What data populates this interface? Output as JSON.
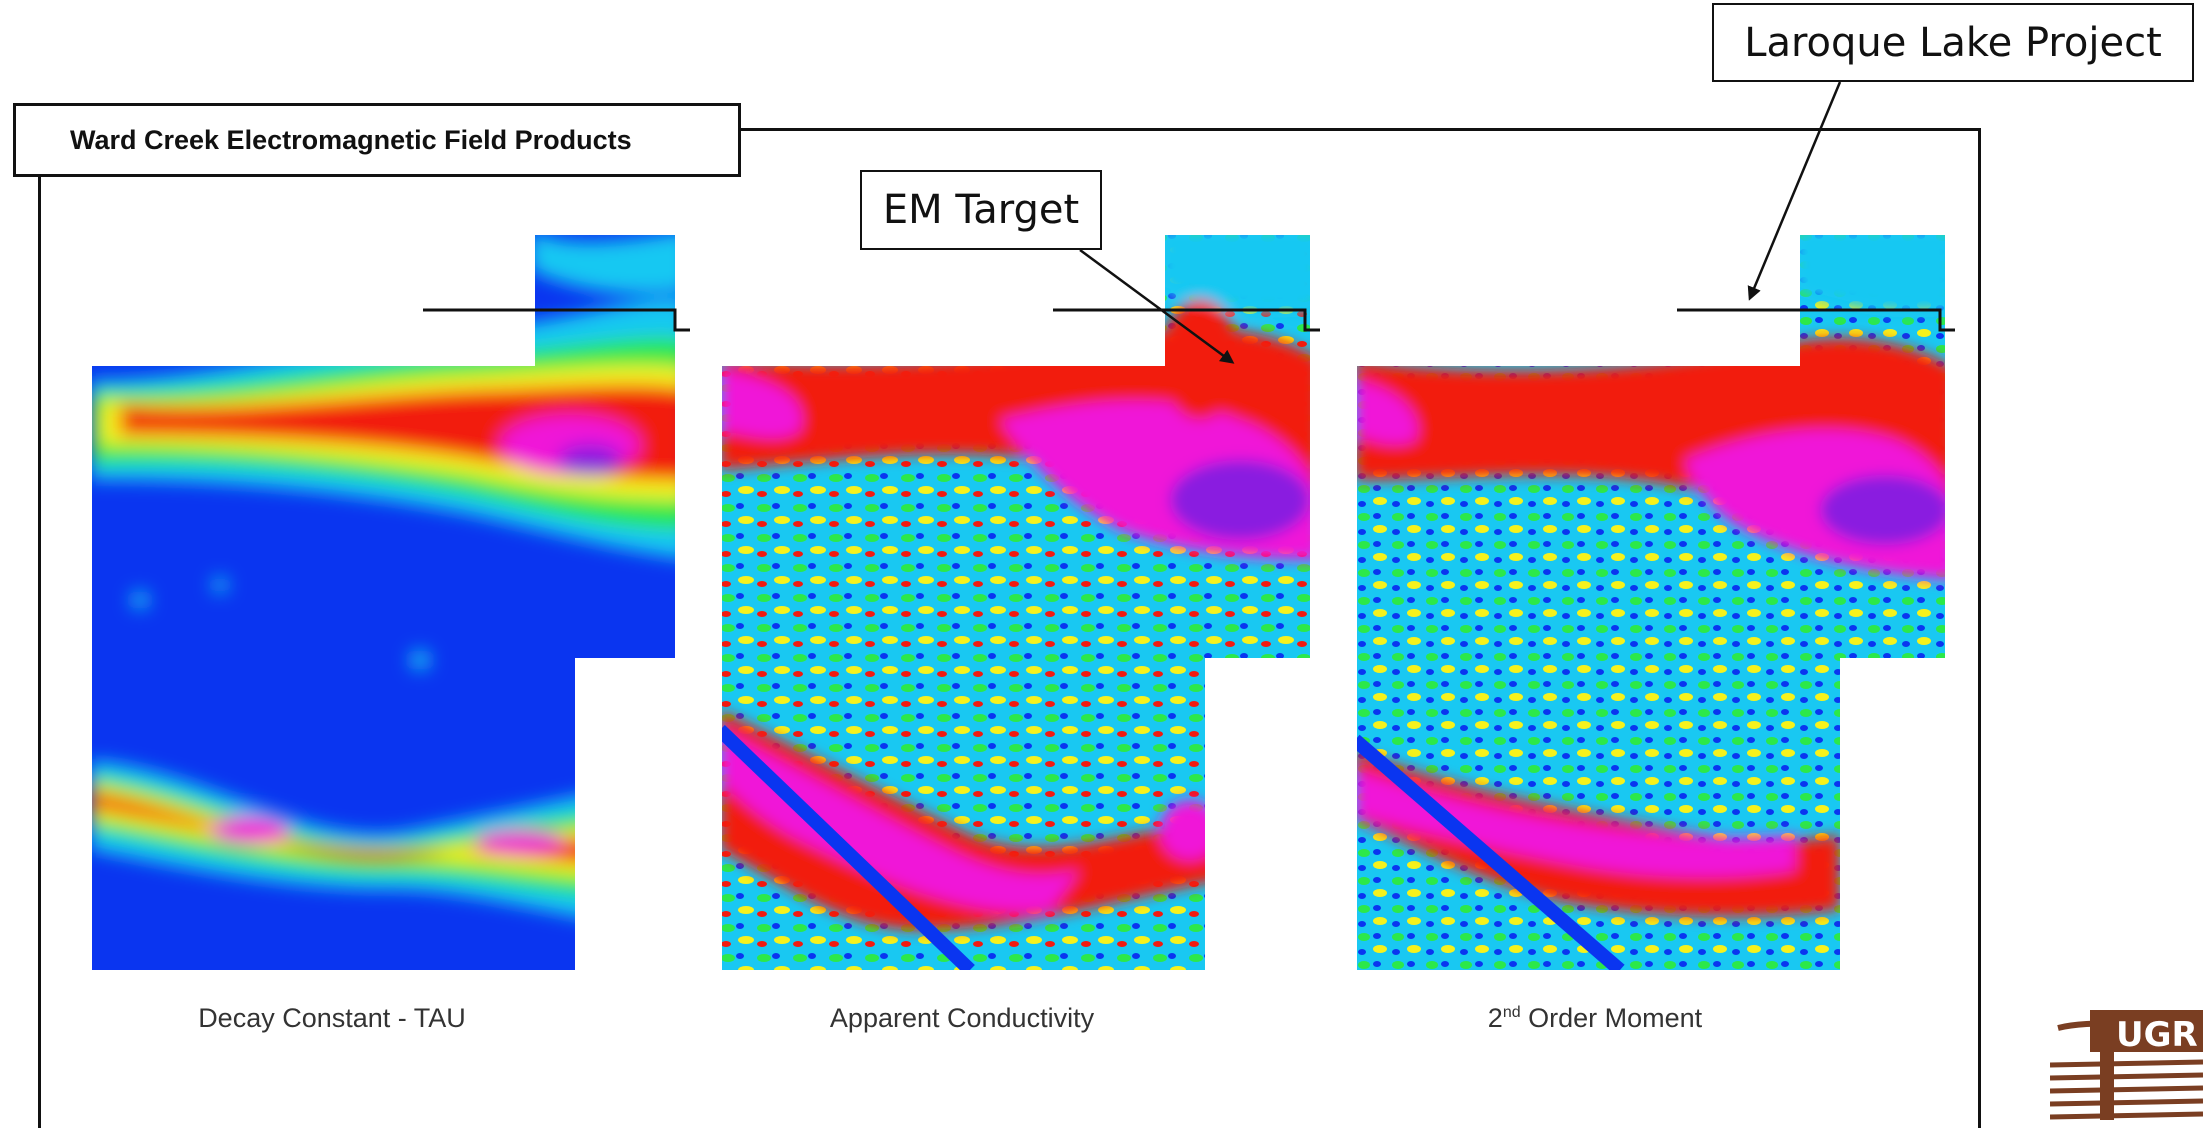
{
  "header": {
    "title": "Ward Creek Electromagnetic Field Products"
  },
  "callouts": {
    "project": "Laroque Lake Project",
    "em_target": "EM Target"
  },
  "panels": [
    {
      "caption": "Decay Constant - TAU"
    },
    {
      "caption": "Apparent Conductivity"
    },
    {
      "caption_super": "nd",
      "caption_prefix": "2",
      "caption_suffix": " Order Moment"
    }
  ],
  "logo": {
    "text": "UGR"
  },
  "colors": {
    "low": "#0a35f0",
    "cyan": "#19c8f2",
    "green": "#2ce84a",
    "yellow": "#f6f21c",
    "red": "#f21a10",
    "magenta": "#f018d8",
    "purple": "#8a1ee0",
    "logo_brown": "#7a3e22"
  }
}
